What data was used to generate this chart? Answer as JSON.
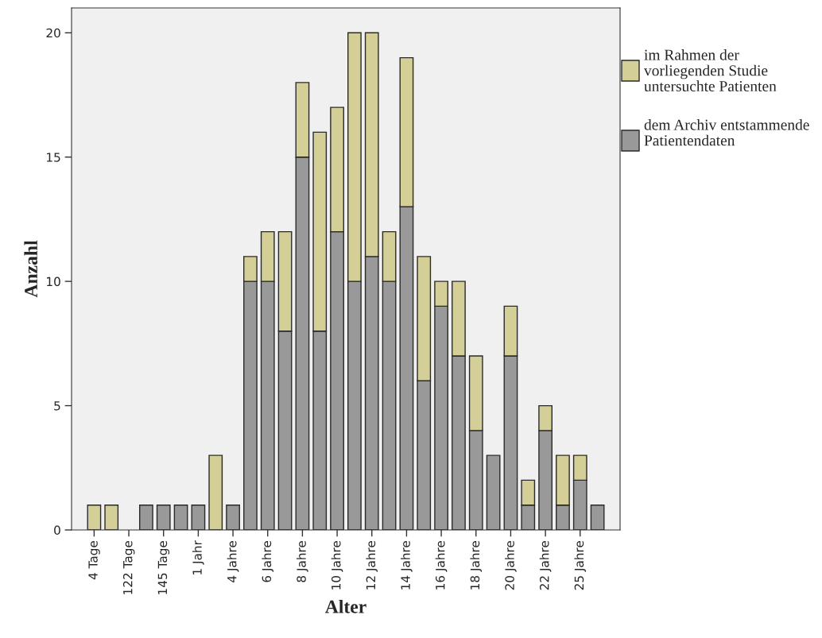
{
  "chart_data": {
    "type": "bar",
    "stacked": true,
    "xlabel": "Alter",
    "ylabel": "Anzahl",
    "categories": [
      "4 Tage",
      null,
      "122 Tage",
      null,
      "145 Tage",
      null,
      "1 Jahr",
      null,
      "4 Jahre",
      null,
      "6 Jahre",
      null,
      "8 Jahre",
      null,
      "10 Jahre",
      null,
      "12 Jahre",
      null,
      "14 Jahre",
      null,
      "16 Jahre",
      null,
      "18 Jahre",
      null,
      "20 Jahre",
      null,
      "22 Jahre",
      null,
      "25 Jahre",
      null
    ],
    "series": [
      {
        "name": "dem Archiv entstammende Patientendaten",
        "color": "#999999",
        "values": [
          null,
          null,
          null,
          1,
          1,
          1,
          1,
          null,
          1,
          10,
          10,
          8,
          15,
          8,
          12,
          10,
          11,
          10,
          13,
          6,
          9,
          7,
          4,
          3,
          7,
          1,
          4,
          1,
          2,
          1
        ]
      },
      {
        "name": "im Rahmen der vorliegenden Studie untersuchte Patienten",
        "color": "#d3cf96",
        "values": [
          1,
          1,
          null,
          null,
          null,
          null,
          null,
          3,
          null,
          1,
          2,
          4,
          3,
          8,
          5,
          10,
          9,
          2,
          6,
          5,
          1,
          3,
          3,
          null,
          2,
          1,
          1,
          2,
          1,
          null
        ]
      }
    ],
    "ylim": [
      0,
      21
    ],
    "yticks": [
      0,
      5,
      10,
      15,
      20
    ],
    "grid": false,
    "legend": "right"
  }
}
